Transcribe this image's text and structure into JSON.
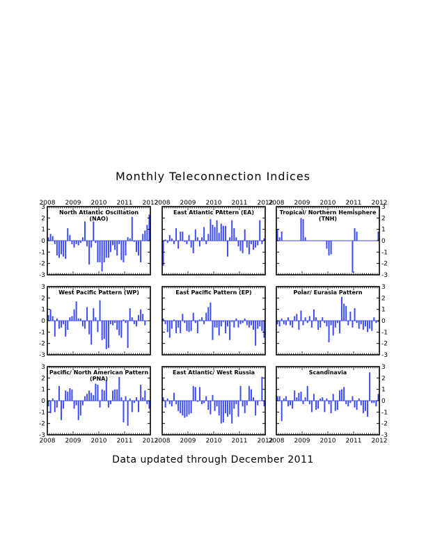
{
  "title": "Monthly Teleconnection Indices",
  "footer": "Data updated through December 2011",
  "bar_color": "#3a49ff",
  "year_labels": [
    "2008",
    "2009",
    "2010",
    "2011",
    "2012"
  ],
  "chart_data": [
    {
      "type": "bar",
      "title": "North Atlantic Oscillation (NAO)",
      "x": [
        "2008-01",
        "2008-02",
        "2008-03",
        "2008-04",
        "2008-05",
        "2008-06",
        "2008-07",
        "2008-08",
        "2008-09",
        "2008-10",
        "2008-11",
        "2008-12",
        "2009-01",
        "2009-02",
        "2009-03",
        "2009-04",
        "2009-05",
        "2009-06",
        "2009-07",
        "2009-08",
        "2009-09",
        "2009-10",
        "2009-11",
        "2009-12",
        "2010-01",
        "2010-02",
        "2010-03",
        "2010-04",
        "2010-05",
        "2010-06",
        "2010-07",
        "2010-08",
        "2010-09",
        "2010-10",
        "2010-11",
        "2010-12",
        "2011-01",
        "2011-02",
        "2011-03",
        "2011-04",
        "2011-05",
        "2011-06",
        "2011-07",
        "2011-08",
        "2011-09",
        "2011-10",
        "2011-11",
        "2011-12"
      ],
      "values": [
        0.3,
        0.6,
        0.4,
        -0.3,
        -1.3,
        -1.5,
        -1.2,
        -1.4,
        -1.6,
        1.1,
        0.5,
        -0.3,
        -0.6,
        -0.3,
        -0.4,
        -0.2,
        0.3,
        1.7,
        -0.5,
        -2.1,
        -0.6,
        1.7,
        -0.2,
        -1.9,
        -1.9,
        -2.7,
        -1.9,
        -1.5,
        -1.5,
        -1.0,
        -0.4,
        -0.8,
        -1.3,
        -0.3,
        -1.7,
        -1.9,
        -1.3,
        0.3,
        0.2,
        2.1,
        -0.1,
        -1.0,
        -1.3,
        -1.9,
        0.6,
        0.9,
        1.4,
        2.3
      ],
      "ylim": [
        -3,
        3
      ],
      "yticks": [
        -3,
        -2,
        -1,
        0,
        1,
        2,
        3
      ],
      "xticks": [
        "2008",
        "2009",
        "2010",
        "2011",
        "2012"
      ]
    },
    {
      "type": "bar",
      "title": "East Atlantic PAttern (EA)",
      "x": [
        "2008-01",
        "2008-02",
        "2008-03",
        "2008-04",
        "2008-05",
        "2008-06",
        "2008-07",
        "2008-08",
        "2008-09",
        "2008-10",
        "2008-11",
        "2008-12",
        "2009-01",
        "2009-02",
        "2009-03",
        "2009-04",
        "2009-05",
        "2009-06",
        "2009-07",
        "2009-08",
        "2009-09",
        "2009-10",
        "2009-11",
        "2009-12",
        "2010-01",
        "2010-02",
        "2010-03",
        "2010-04",
        "2010-05",
        "2010-06",
        "2010-07",
        "2010-08",
        "2010-09",
        "2010-10",
        "2010-11",
        "2010-12",
        "2011-01",
        "2011-02",
        "2011-03",
        "2011-04",
        "2011-05",
        "2011-06",
        "2011-07",
        "2011-08",
        "2011-09",
        "2011-10",
        "2011-11",
        "2011-12"
      ],
      "values": [
        -2.2,
        0.1,
        -0.2,
        0.5,
        0.2,
        -0.3,
        1.1,
        -0.7,
        0.8,
        0.8,
        -0.1,
        -0.3,
        0.5,
        -0.6,
        -1.1,
        1.0,
        0.3,
        -0.5,
        0.3,
        1.2,
        -0.3,
        0.6,
        1.9,
        1.4,
        1.2,
        1.8,
        0.7,
        1.5,
        1.3,
        1.3,
        -1.4,
        0.3,
        1.8,
        1.1,
        0.3,
        -0.5,
        -0.9,
        -1.1,
        1.0,
        -0.6,
        -1.2,
        -0.3,
        -0.8,
        -0.6,
        -0.4,
        1.8,
        -0.3,
        0.2
      ],
      "ylim": [
        -3,
        3
      ],
      "yticks": [
        -3,
        -2,
        -1,
        0,
        1,
        2,
        3
      ],
      "xticks": [
        "2008",
        "2009",
        "2010",
        "2011",
        "2012"
      ]
    },
    {
      "type": "bar",
      "title": "Tropical/ Northern Hemisphere (TNH)",
      "x": [
        "2008-01",
        "2008-02",
        "2008-03",
        "2008-04",
        "2008-05",
        "2008-06",
        "2008-07",
        "2008-08",
        "2008-09",
        "2008-10",
        "2008-11",
        "2008-12",
        "2009-01",
        "2009-02",
        "2009-03",
        "2009-04",
        "2009-05",
        "2009-06",
        "2009-07",
        "2009-08",
        "2009-09",
        "2009-10",
        "2009-11",
        "2009-12",
        "2010-01",
        "2010-02",
        "2010-03",
        "2010-04",
        "2010-05",
        "2010-06",
        "2010-07",
        "2010-08",
        "2010-09",
        "2010-10",
        "2010-11",
        "2010-12",
        "2011-01",
        "2011-02",
        "2011-03",
        "2011-04",
        "2011-05",
        "2011-06",
        "2011-07",
        "2011-08",
        "2011-09",
        "2011-10",
        "2011-11",
        "2011-12"
      ],
      "values": [
        1.0,
        0.3,
        0.8,
        0,
        0,
        0,
        0,
        0,
        0,
        0,
        0,
        2.0,
        1.9,
        0.3,
        0,
        0,
        0,
        0,
        0,
        0,
        0,
        0,
        0,
        -0.7,
        -1.3,
        -1.2,
        0,
        0,
        0,
        0,
        0,
        0,
        0,
        0,
        0,
        -2.8,
        1.1,
        0.8,
        0,
        0,
        0,
        0,
        0,
        0,
        0,
        0,
        0,
        0.8
      ],
      "ylim": [
        -3,
        3
      ],
      "yticks": [
        -3,
        -2,
        -1,
        0,
        1,
        2,
        3
      ],
      "xticks": [
        "2008",
        "2009",
        "2010",
        "2011",
        "2012"
      ]
    },
    {
      "type": "bar",
      "title": "West Pacific Pattern (WP)",
      "x": [
        "2008-01",
        "2008-02",
        "2008-03",
        "2008-04",
        "2008-05",
        "2008-06",
        "2008-07",
        "2008-08",
        "2008-09",
        "2008-10",
        "2008-11",
        "2008-12",
        "2009-01",
        "2009-02",
        "2009-03",
        "2009-04",
        "2009-05",
        "2009-06",
        "2009-07",
        "2009-08",
        "2009-09",
        "2009-10",
        "2009-11",
        "2009-12",
        "2010-01",
        "2010-02",
        "2010-03",
        "2010-04",
        "2010-05",
        "2010-06",
        "2010-07",
        "2010-08",
        "2010-09",
        "2010-10",
        "2010-11",
        "2010-12",
        "2011-01",
        "2011-02",
        "2011-03",
        "2011-04",
        "2011-05",
        "2011-06",
        "2011-07",
        "2011-08",
        "2011-09",
        "2011-10",
        "2011-11",
        "2011-12"
      ],
      "values": [
        0.5,
        1.0,
        0.4,
        -1.4,
        0.2,
        -0.7,
        -0.6,
        -0.3,
        -1.4,
        -0.8,
        0.3,
        0.4,
        1.0,
        1.7,
        0.2,
        0.2,
        -0.5,
        -0.7,
        1.2,
        -1.2,
        -2.1,
        1.1,
        0.3,
        -1.0,
        1.8,
        -1.7,
        -1.6,
        -2.5,
        -2.4,
        -0.3,
        -0.4,
        -0.2,
        -0.8,
        -1.3,
        -1.5,
        0.1,
        -0.2,
        -2.4,
        1.1,
        0.3,
        -0.3,
        -0.5,
        0.5,
        1.0,
        0.6,
        -0.4,
        0,
        0
      ],
      "ylim": [
        -3,
        3
      ],
      "yticks": [
        -3,
        -2,
        -1,
        0,
        1,
        2,
        3
      ],
      "xticks": [
        "2008",
        "2009",
        "2010",
        "2011",
        "2012"
      ]
    },
    {
      "type": "bar",
      "title": "East Pacific Pattern (EP)",
      "x": [
        "2008-01",
        "2008-02",
        "2008-03",
        "2008-04",
        "2008-05",
        "2008-06",
        "2008-07",
        "2008-08",
        "2008-09",
        "2008-10",
        "2008-11",
        "2008-12",
        "2009-01",
        "2009-02",
        "2009-03",
        "2009-04",
        "2009-05",
        "2009-06",
        "2009-07",
        "2009-08",
        "2009-09",
        "2009-10",
        "2009-11",
        "2009-12",
        "2010-01",
        "2010-02",
        "2010-03",
        "2010-04",
        "2010-05",
        "2010-06",
        "2010-07",
        "2010-08",
        "2010-09",
        "2010-10",
        "2010-11",
        "2010-12",
        "2011-01",
        "2011-02",
        "2011-03",
        "2011-04",
        "2011-05",
        "2011-06",
        "2011-07",
        "2011-08",
        "2011-09",
        "2011-10",
        "2011-11",
        "2011-12"
      ],
      "values": [
        0.2,
        -0.3,
        -1.0,
        -1.5,
        -0.7,
        0.1,
        -1.1,
        -0.6,
        -1.1,
        0.6,
        -0.2,
        -0.9,
        -1.0,
        -0.9,
        0.7,
        -0.2,
        -1.1,
        0.1,
        0.3,
        -0.3,
        0.7,
        1.2,
        1.6,
        -1.7,
        -0.6,
        -0.6,
        -1.3,
        -0.5,
        -0.1,
        -1.1,
        -0.5,
        -1.7,
        -0.1,
        -0.6,
        0.2,
        -0.6,
        -0.3,
        -0.2,
        0.2,
        -0.4,
        -0.6,
        -0.4,
        -0.8,
        -2.2,
        -0.7,
        -0.5,
        -0.9,
        -1.5
      ],
      "ylim": [
        -3,
        3
      ],
      "yticks": [
        -3,
        -2,
        -1,
        0,
        1,
        2,
        3
      ],
      "xticks": [
        "2008",
        "2009",
        "2010",
        "2011",
        "2012"
      ]
    },
    {
      "type": "bar",
      "title": "Polar/ Eurasia Pattern",
      "x": [
        "2008-01",
        "2008-02",
        "2008-03",
        "2008-04",
        "2008-05",
        "2008-06",
        "2008-07",
        "2008-08",
        "2008-09",
        "2008-10",
        "2008-11",
        "2008-12",
        "2009-01",
        "2009-02",
        "2009-03",
        "2009-04",
        "2009-05",
        "2009-06",
        "2009-07",
        "2009-08",
        "2009-09",
        "2009-10",
        "2009-11",
        "2009-12",
        "2010-01",
        "2010-02",
        "2010-03",
        "2010-04",
        "2010-05",
        "2010-06",
        "2010-07",
        "2010-08",
        "2010-09",
        "2010-10",
        "2010-11",
        "2010-12",
        "2011-01",
        "2011-02",
        "2011-03",
        "2011-04",
        "2011-05",
        "2011-06",
        "2011-07",
        "2011-08",
        "2011-09",
        "2011-10",
        "2011-11",
        "2011-12"
      ],
      "values": [
        -0.3,
        -0.5,
        0.2,
        -0.3,
        -0.4,
        0.3,
        -0.4,
        -0.6,
        0.4,
        0.6,
        -0.8,
        0.9,
        -0.4,
        0.3,
        -0.2,
        0.4,
        -0.6,
        1.0,
        0.3,
        -0.8,
        -0.6,
        0.3,
        -0.2,
        -0.5,
        -1.9,
        -0.4,
        -1.3,
        -0.6,
        -0.2,
        -1.1,
        2.1,
        1.5,
        1.3,
        -0.4,
        0.8,
        -0.6,
        1.1,
        -0.2,
        -0.7,
        -0.3,
        -0.8,
        -0.5,
        -1.0,
        -0.7,
        -0.9,
        0.3,
        -0.2,
        -0.1
      ],
      "ylim": [
        -3,
        3
      ],
      "yticks": [
        -3,
        -2,
        -1,
        0,
        1,
        2,
        3
      ],
      "xticks": [
        "2008",
        "2009",
        "2010",
        "2011",
        "2012"
      ]
    },
    {
      "type": "bar",
      "title": "Pacific/ North American Pattern (PNA)",
      "x": [
        "2008-01",
        "2008-02",
        "2008-03",
        "2008-04",
        "2008-05",
        "2008-06",
        "2008-07",
        "2008-08",
        "2008-09",
        "2008-10",
        "2008-11",
        "2008-12",
        "2009-01",
        "2009-02",
        "2009-03",
        "2009-04",
        "2009-05",
        "2009-06",
        "2009-07",
        "2009-08",
        "2009-09",
        "2009-10",
        "2009-11",
        "2009-12",
        "2010-01",
        "2010-02",
        "2010-03",
        "2010-04",
        "2010-05",
        "2010-06",
        "2010-07",
        "2010-08",
        "2010-09",
        "2010-10",
        "2010-11",
        "2010-12",
        "2011-01",
        "2011-02",
        "2011-03",
        "2011-04",
        "2011-05",
        "2011-06",
        "2011-07",
        "2011-08",
        "2011-09",
        "2011-10",
        "2011-11",
        "2011-12"
      ],
      "values": [
        -0.5,
        -1.1,
        0.2,
        -1.0,
        -0.6,
        1.3,
        -1.7,
        -0.7,
        0.9,
        0.8,
        1.1,
        1.0,
        -0.7,
        -0.4,
        -1.7,
        -1.3,
        -0.4,
        0.4,
        0.6,
        0.9,
        0.7,
        0.5,
        1.5,
        1.4,
        -0.6,
        1.0,
        0.9,
        1.8,
        -0.6,
        -0.3,
        0.9,
        1.0,
        1.0,
        2.1,
        0.3,
        -1.9,
        0.4,
        -2.2,
        0.2,
        -1.0,
        -0.2,
        0.3,
        -1.0,
        1.4,
        0.3,
        0.9,
        -0.3,
        -0.7
      ],
      "ylim": [
        -3,
        3
      ],
      "yticks": [
        -3,
        -2,
        -1,
        0,
        1,
        2,
        3
      ],
      "xticks": [
        "2008",
        "2009",
        "2010",
        "2011",
        "2012"
      ]
    },
    {
      "type": "bar",
      "title": "East Atlantic/ West Russia",
      "x": [
        "2008-01",
        "2008-02",
        "2008-03",
        "2008-04",
        "2008-05",
        "2008-06",
        "2008-07",
        "2008-08",
        "2008-09",
        "2008-10",
        "2008-11",
        "2008-12",
        "2009-01",
        "2009-02",
        "2009-03",
        "2009-04",
        "2009-05",
        "2009-06",
        "2009-07",
        "2009-08",
        "2009-09",
        "2009-10",
        "2009-11",
        "2009-12",
        "2010-01",
        "2010-02",
        "2010-03",
        "2010-04",
        "2010-05",
        "2010-06",
        "2010-07",
        "2010-08",
        "2010-09",
        "2010-10",
        "2010-11",
        "2010-12",
        "2011-01",
        "2011-02",
        "2011-03",
        "2011-04",
        "2011-05",
        "2011-06",
        "2011-07",
        "2011-08",
        "2011-09",
        "2011-10",
        "2011-11",
        "2011-12"
      ],
      "values": [
        0.3,
        -0.6,
        0.2,
        -0.3,
        -0.5,
        0.7,
        -0.3,
        -0.9,
        -1.1,
        -1.3,
        -1.5,
        -1.4,
        -1.2,
        -1.1,
        1.3,
        1.2,
        -0.1,
        1.2,
        -0.3,
        -0.2,
        0.4,
        -0.8,
        -1.2,
        0.5,
        -0.9,
        -0.5,
        -1.3,
        -2.0,
        -1.9,
        -1.1,
        -1.4,
        -1.2,
        -2.0,
        -0.7,
        -0.3,
        -1.4,
        1.3,
        -0.5,
        -1.1,
        -0.4,
        1.3,
        1.0,
        0.3,
        -1.3,
        -0.4,
        0,
        2.1,
        -0.5
      ],
      "ylim": [
        -3,
        3
      ],
      "yticks": [
        -3,
        -2,
        -1,
        0,
        1,
        2,
        3
      ],
      "xticks": [
        "2008",
        "2009",
        "2010",
        "2011",
        "2012"
      ]
    },
    {
      "type": "bar",
      "title": "Scandinavia",
      "x": [
        "2008-01",
        "2008-02",
        "2008-03",
        "2008-04",
        "2008-05",
        "2008-06",
        "2008-07",
        "2008-08",
        "2008-09",
        "2008-10",
        "2008-11",
        "2008-12",
        "2009-01",
        "2009-02",
        "2009-03",
        "2009-04",
        "2009-05",
        "2009-06",
        "2009-07",
        "2009-08",
        "2009-09",
        "2009-10",
        "2009-11",
        "2009-12",
        "2010-01",
        "2010-02",
        "2010-03",
        "2010-04",
        "2010-05",
        "2010-06",
        "2010-07",
        "2010-08",
        "2010-09",
        "2010-10",
        "2010-11",
        "2010-12",
        "2011-01",
        "2011-02",
        "2011-03",
        "2011-04",
        "2011-05",
        "2011-06",
        "2011-07",
        "2011-08",
        "2011-09",
        "2011-10",
        "2011-11",
        "2011-12"
      ],
      "values": [
        0.4,
        0.4,
        -1.8,
        0.2,
        0.4,
        -0.5,
        -0.4,
        -0.7,
        0.9,
        0.3,
        0.7,
        0.8,
        -0.3,
        0.3,
        1.3,
        -0.3,
        -1.0,
        0.6,
        -0.8,
        -0.7,
        0.2,
        0.3,
        -1.0,
        0.2,
        -0.3,
        -1.1,
        0.6,
        -0.9,
        -0.8,
        0.9,
        1.0,
        1.2,
        -0.3,
        -0.5,
        -0.2,
        0.4,
        -0.6,
        -0.8,
        0.2,
        -0.4,
        -1.1,
        -0.9,
        -1.4,
        2.5,
        -0.2,
        -0.2,
        -0.5,
        0.6
      ],
      "ylim": [
        -3,
        3
      ],
      "yticks": [
        -3,
        -2,
        -1,
        0,
        1,
        2,
        3
      ],
      "xticks": [
        "2008",
        "2009",
        "2010",
        "2011",
        "2012"
      ]
    }
  ]
}
